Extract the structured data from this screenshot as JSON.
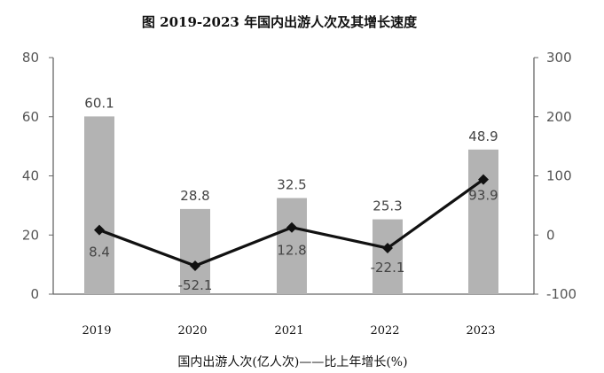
{
  "chart_data": {
    "type": "bar",
    "title": "图 2019-2023 年国内出游人次及其增长速度",
    "categories": [
      "2019",
      "2020",
      "2021",
      "2022",
      "2023"
    ],
    "ylim_left": [
      0,
      80
    ],
    "yticks_left": [
      "0",
      "20",
      "40",
      "60",
      "80"
    ],
    "ylim_right": [
      -100,
      300
    ],
    "yticks_right": [
      "-100",
      "0",
      "100",
      "200",
      "300"
    ],
    "series": [
      {
        "type": "bar",
        "axis": "left",
        "values": [
          60.1,
          28.8,
          32.5,
          25.3,
          48.9
        ],
        "labels": [
          "60.1",
          "28.8",
          "32.5",
          "25.3",
          "48.9"
        ],
        "color": "#b3b3b3"
      },
      {
        "type": "line",
        "axis": "right",
        "values": [
          8.4,
          -52.1,
          12.8,
          -22.1,
          93.9
        ],
        "labels": [
          "8.4",
          "-52.1",
          "12.8",
          "-22.1",
          "93.9"
        ],
        "color": "#111111"
      }
    ],
    "legend_text": "国内出游人次(亿人次)——比上年增长(%)",
    "grid": false
  }
}
